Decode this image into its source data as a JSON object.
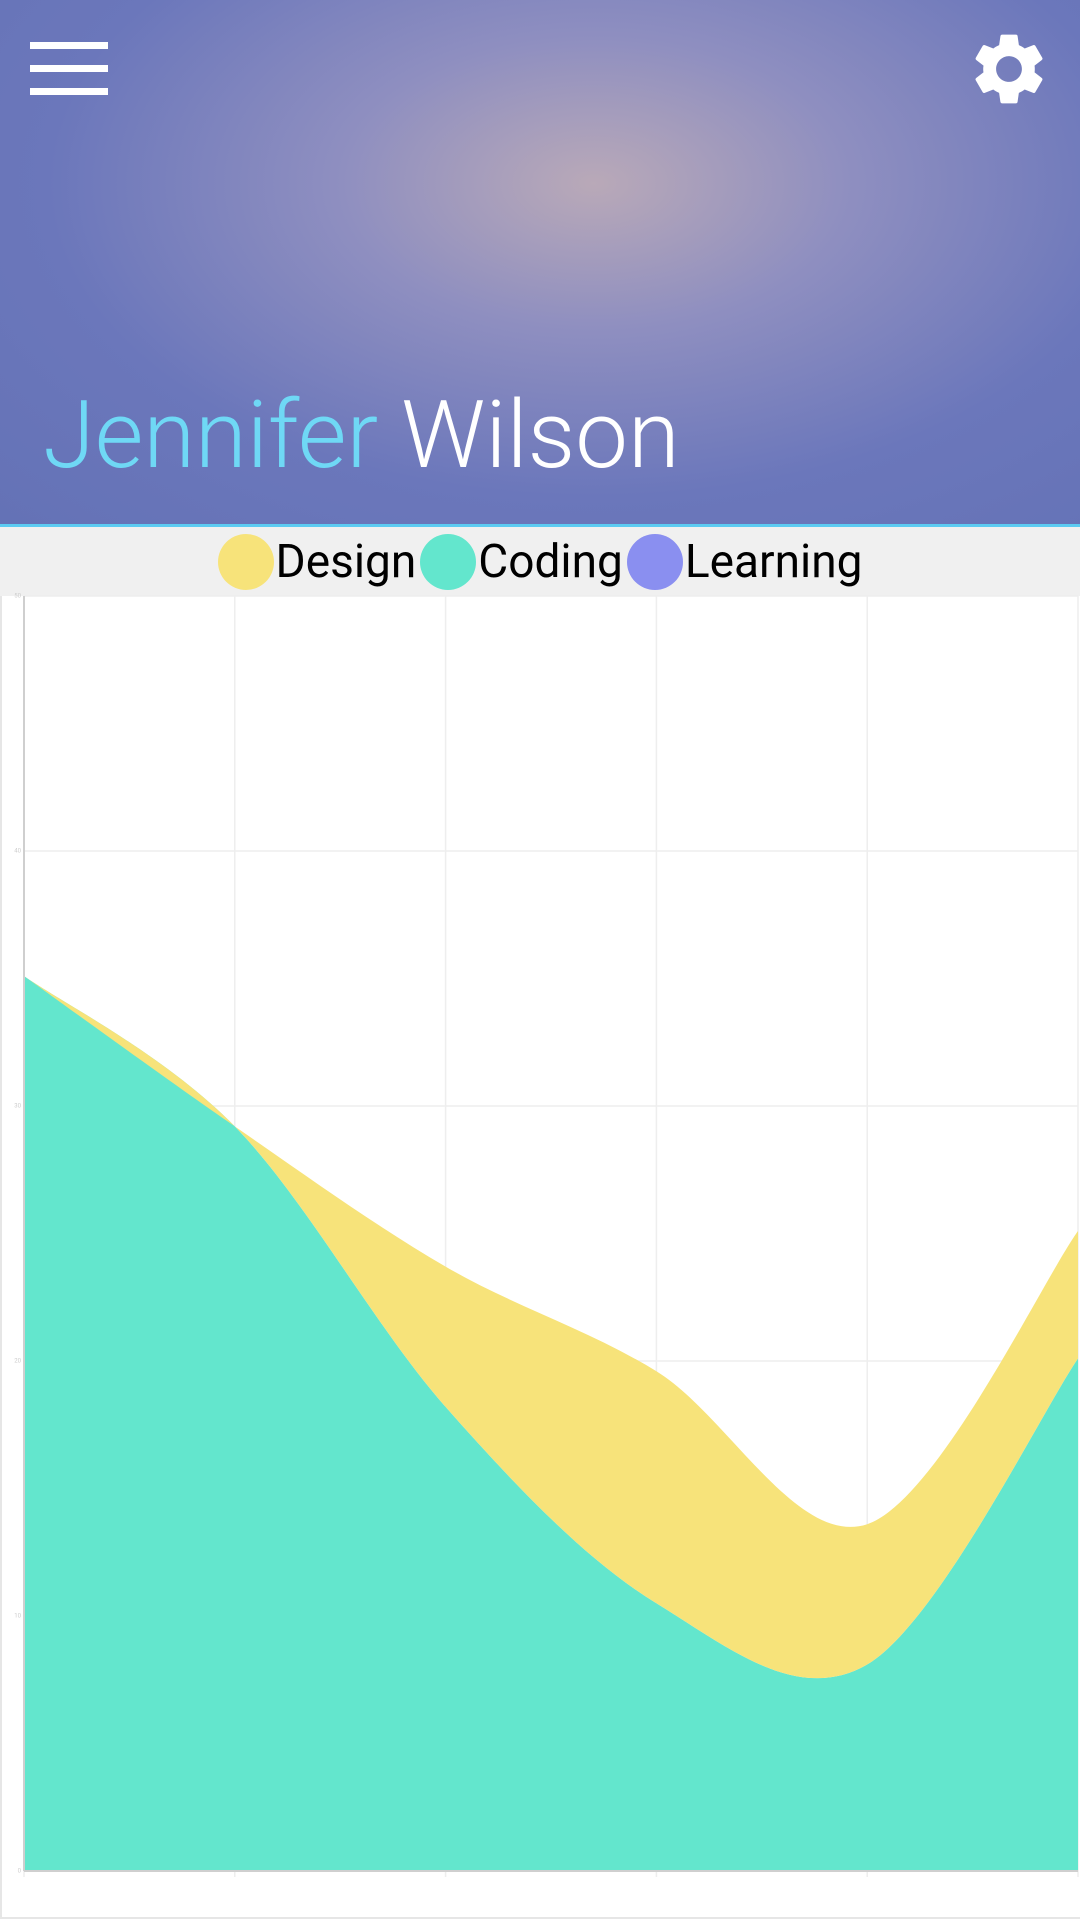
{
  "header": {
    "first_name": "Jennifer",
    "last_name": "Wilson"
  },
  "chart_data": {
    "type": "area",
    "stacked": true,
    "categories": [
      null,
      null,
      null,
      null,
      null,
      null
    ],
    "series": [
      {
        "name": "Design",
        "color": "#f7e37a",
        "values": [
          0,
          0,
          5.5,
          9.1,
          5.5,
          5
        ]
      },
      {
        "name": "Coding",
        "color": "#63e6cd",
        "values": [
          35.1,
          29.2,
          18.2,
          10.5,
          8.1,
          20.1
        ]
      },
      {
        "name": "Learning",
        "color": "#8a8ff0",
        "values": [
          0,
          0,
          0,
          0,
          0,
          0
        ]
      }
    ],
    "ylim": [
      0,
      50
    ],
    "yticks": [
      0,
      10,
      20,
      30,
      40,
      50
    ],
    "grid": true
  }
}
